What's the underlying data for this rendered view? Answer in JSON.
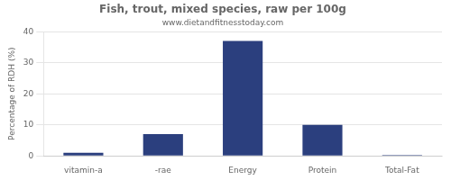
{
  "chart_data": {
    "type": "bar",
    "title": "Fish, trout, mixed species, raw per 100g",
    "subtitle": "www.dietandfitnesstoday.com",
    "categories": [
      "vitamin-a",
      "-rae",
      "Energy",
      "Protein",
      "Total-Fat"
    ],
    "values": [
      1,
      7,
      37,
      10,
      0.3
    ],
    "color": "#2b3f7e",
    "ylabel": "Percentage of RDH (%)",
    "ylim": [
      0,
      40
    ],
    "yticks": [
      0,
      10,
      20,
      30,
      40
    ],
    "grid": true
  }
}
